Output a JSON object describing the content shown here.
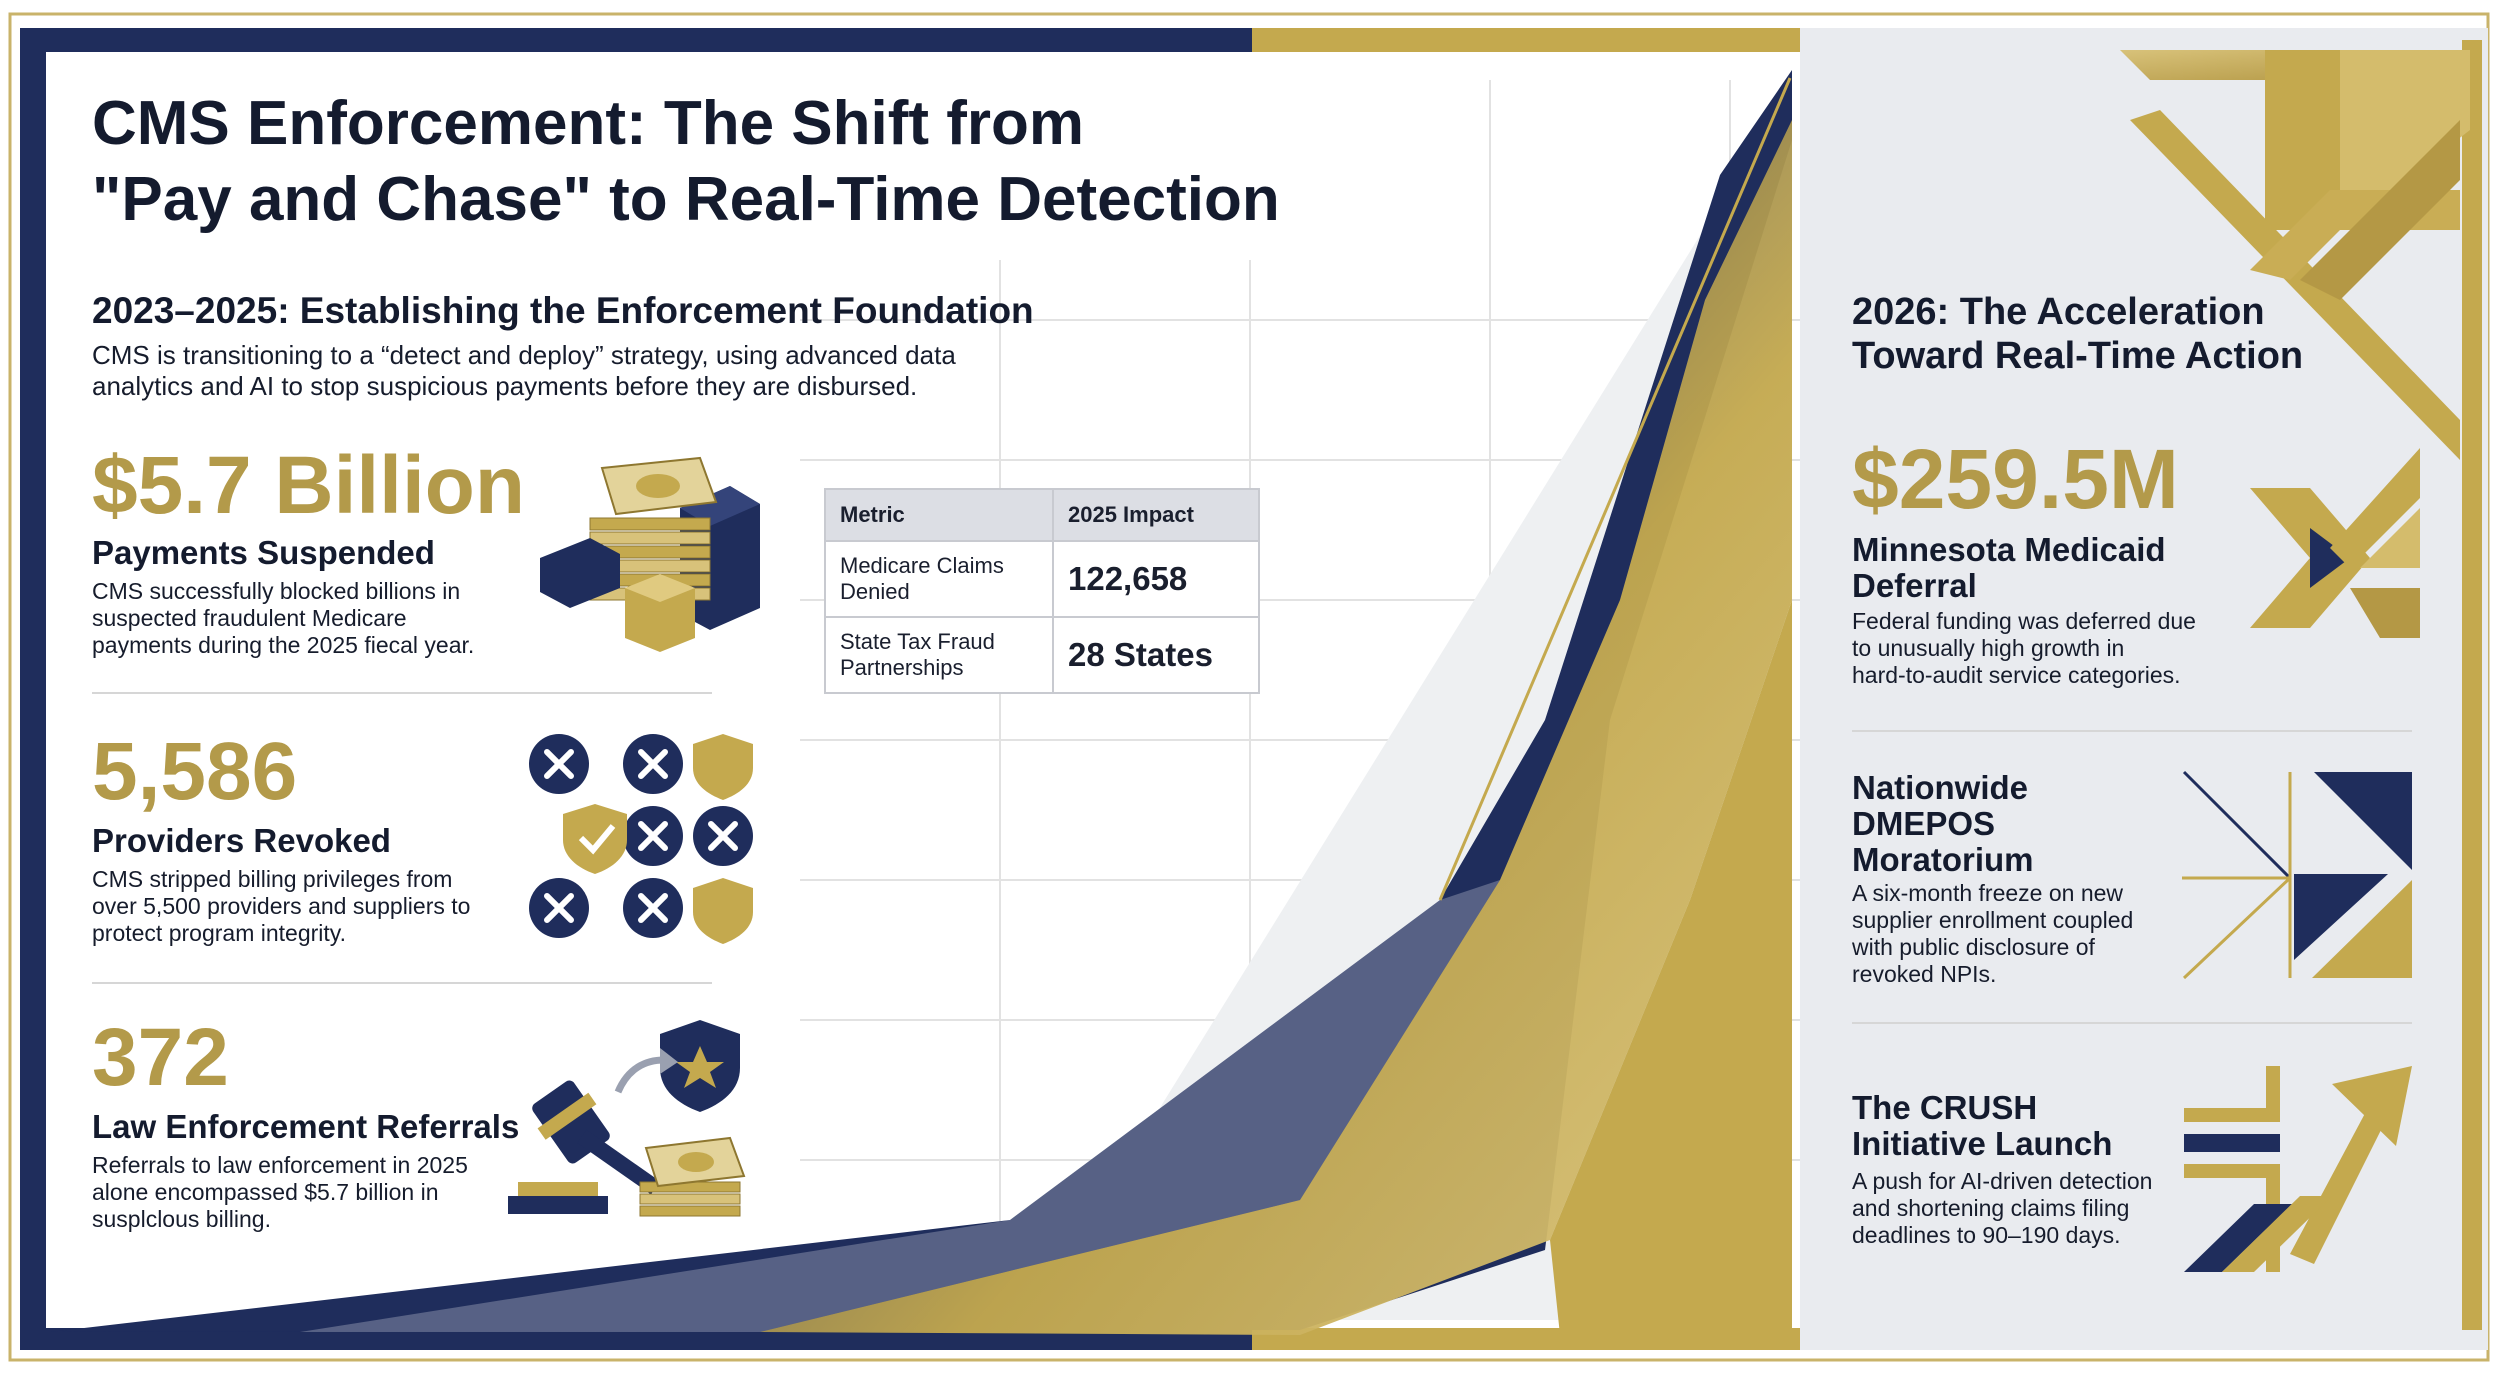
{
  "title": {
    "line1": "CMS Enforcement: The Shift from",
    "line2": "\"Pay and Chase\" to Real-Time Detection"
  },
  "left": {
    "heading": "2023–2025: Establishing the Enforcement Foundation",
    "intro_line1": "CMS is transitioning to a “detect and deploy” strategy, using advanced data",
    "intro_line2": "analytics and AI to stop suspicious payments before they are disbursed.",
    "stats": [
      {
        "value": "$5.7 Billion",
        "label": "Payments Suspended",
        "desc": [
          "CMS successfully blocked billions in",
          "suspected fraudulent Medicare",
          "payments during the 2025 fiecal year."
        ],
        "icon": "money-stack-icon"
      },
      {
        "value": "5,586",
        "label": "Providers Revoked",
        "desc": [
          "CMS stripped billing privileges from",
          "over 5,500 providers and suppliers to",
          "protect program integrity."
        ],
        "icon": "revoked-grid-icon"
      },
      {
        "value": "372",
        "label": "Law Enforcement Referrals",
        "desc": [
          "Referrals to law enforcement in 2025",
          "alone encompassed $5.7 billion in",
          "susplclous billing."
        ],
        "icon": "gavel-badge-icon"
      }
    ]
  },
  "table": {
    "headers": [
      "Metric",
      "2025 Impact"
    ],
    "rows": [
      {
        "metric": [
          "Medicare Claims",
          "Denied"
        ],
        "value": "122,658"
      },
      {
        "metric": [
          "State Tax Fraud",
          "Partnerships"
        ],
        "value": "28 States"
      }
    ]
  },
  "right": {
    "heading_line1": "2026: The Acceleration",
    "heading_line2": "Toward Real-Time Action",
    "big_value": "$259.5M",
    "items": [
      {
        "title": [
          "Minnesota Medicaid",
          "Deferral"
        ],
        "desc": [
          "Federal funding was deferred due",
          "to unusually high growth in",
          "hard-to-audit service categories."
        ],
        "icon": "chevron-pattern-icon"
      },
      {
        "title": [
          "Nationwide",
          "DMEPOS",
          "Moratorium"
        ],
        "desc": [
          "A six-month freeze on new",
          "supplier enrollment coupled",
          "with public disclosure of",
          "revoked NPIs."
        ],
        "icon": "triangle-block-icon"
      },
      {
        "title": [
          "The CRUSH",
          "Initiative Launch"
        ],
        "desc": [
          "A push for AI-driven detection",
          "and shortening claims filing",
          "deadlines to 90–190 days."
        ],
        "icon": "arrow-up-icon"
      }
    ]
  },
  "colors": {
    "navy": "#1f2d5c",
    "gold": "#c4a94e",
    "text": "#141b2e",
    "panel": "#e9ebef"
  }
}
